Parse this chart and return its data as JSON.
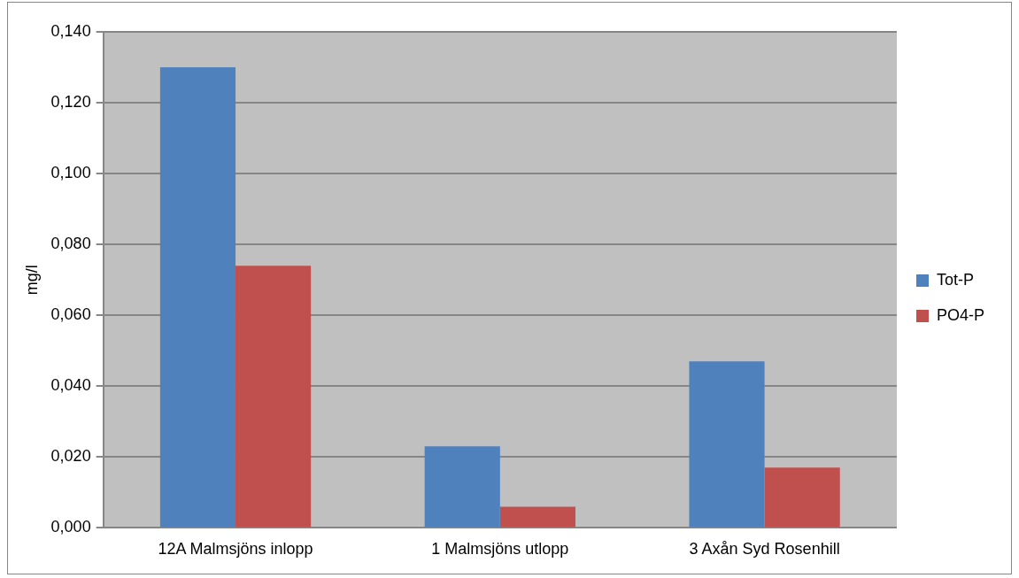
{
  "chart_data": {
    "type": "bar",
    "ylabel": "mg/l",
    "categories": [
      "12A Malmsjöns inlopp",
      "1 Malmsjöns utlopp",
      "3 Axån Syd Rosenhill"
    ],
    "series": [
      {
        "name": "Tot-P",
        "color": "#4f81bd",
        "values": [
          0.13,
          0.023,
          0.047
        ]
      },
      {
        "name": "PO4-P",
        "color": "#c0504d",
        "values": [
          0.074,
          0.006,
          0.017
        ]
      }
    ],
    "ylim": [
      0,
      0.14
    ],
    "yticks": [
      {
        "value": 0,
        "label": "0,000"
      },
      {
        "value": 0.02,
        "label": "0,020"
      },
      {
        "value": 0.04,
        "label": "0,040"
      },
      {
        "value": 0.06,
        "label": "0,060"
      },
      {
        "value": 0.08,
        "label": "0,080"
      },
      {
        "value": 0.1,
        "label": "0,100"
      },
      {
        "value": 0.12,
        "label": "0,120"
      },
      {
        "value": 0.14,
        "label": "0,140"
      }
    ],
    "grid": "y",
    "legend": "right"
  }
}
